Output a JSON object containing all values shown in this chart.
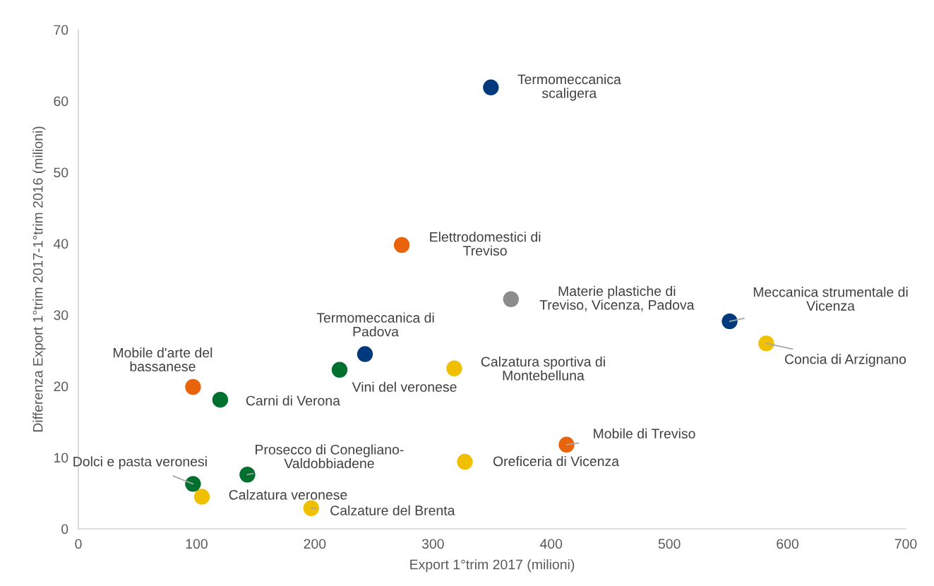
{
  "chart_data": {
    "type": "scatter",
    "xlabel": "Export 1°trim 2017 (milioni)",
    "ylabel": "Differenza Export 1°trim 2017-1°trim 2016 (milioni)",
    "xlim": [
      0,
      700
    ],
    "xticks": [
      0,
      100,
      200,
      300,
      400,
      500,
      600,
      700
    ],
    "ylim": [
      0,
      70
    ],
    "yticks": [
      0,
      10,
      20,
      30,
      40,
      50,
      60,
      70
    ],
    "grid": false,
    "legend": false,
    "marker": "circle",
    "series": [
      {
        "color": "#003a7d",
        "x": [
          349,
          551,
          242.5
        ],
        "values": [
          61.9,
          29.1,
          24.5
        ]
      },
      {
        "color": "#e8630a",
        "x": [
          273.6,
          97,
          413
        ],
        "values": [
          39.8,
          19.9,
          11.8
        ]
      },
      {
        "color": "#8c8c8c",
        "x": [
          366
        ],
        "values": [
          32.2
        ]
      },
      {
        "color": "#f0c000",
        "x": [
          582,
          318,
          327,
          104.5,
          197
        ],
        "values": [
          26.0,
          22.5,
          9.4,
          4.5,
          2.9
        ]
      },
      {
        "color": "#00702f",
        "x": [
          221,
          120,
          143,
          97
        ],
        "values": [
          22.3,
          18.1,
          7.6,
          6.3
        ]
      }
    ],
    "annotations": [
      {
        "text": "Termomeccanica\nscaligera",
        "x": 349,
        "y": 61.9
      },
      {
        "text": "Elettrodomestici di\nTreviso",
        "x": 273.6,
        "y": 39.8
      },
      {
        "text": "Materie plastiche di\nTreviso, Vicenza, Padova",
        "x": 366,
        "y": 32.2
      },
      {
        "text": "Meccanica strumentale di\nVicenza",
        "x": 551,
        "y": 29.1
      },
      {
        "text": "Concia di Arzignano",
        "x": 582,
        "y": 26.0
      },
      {
        "text": "Termomeccanica di\nPadova",
        "x": 242.5,
        "y": 24.5
      },
      {
        "text": "Calzatura sportiva di\nMontebelluna",
        "x": 318,
        "y": 22.5
      },
      {
        "text": "Vini del veronese",
        "x": 221,
        "y": 22.3
      },
      {
        "text": "Mobile d'arte del\nbassanese",
        "x": 97,
        "y": 19.9
      },
      {
        "text": "Carni di Verona",
        "x": 120,
        "y": 18.1
      },
      {
        "text": "Mobile di Treviso",
        "x": 413,
        "y": 11.8
      },
      {
        "text": "Oreficeria di Vicenza",
        "x": 327,
        "y": 9.4
      },
      {
        "text": "Prosecco di Conegliano-\nValdobbiadene",
        "x": 143,
        "y": 7.6
      },
      {
        "text": "Dolci e pasta veronesi",
        "x": 97,
        "y": 6.3
      },
      {
        "text": "Calzatura veronese",
        "x": 104.5,
        "y": 4.5
      },
      {
        "text": "Calzature del Brenta",
        "x": 197,
        "y": 2.9
      }
    ]
  }
}
